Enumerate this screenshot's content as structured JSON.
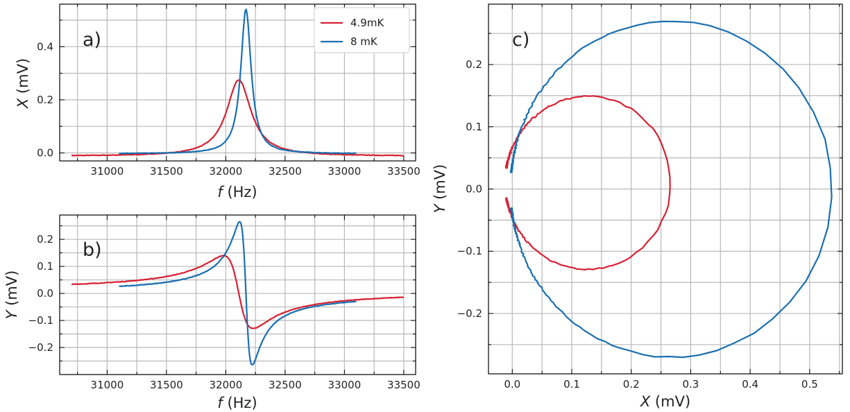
{
  "colors": {
    "series_4_9mK": "#d62033",
    "series_8mK": "#1a6faf"
  },
  "chart_data": [
    {
      "id": "a",
      "type": "line",
      "panel_label": "a)",
      "xlabel_var": "f",
      "xlabel_unit": " (Hz)",
      "ylabel_var": "X",
      "ylabel_unit": " (mV)",
      "xlim": [
        30600,
        33600
      ],
      "ylim": [
        -0.03,
        0.56
      ],
      "xticks": [
        31000,
        31500,
        32000,
        32500,
        33000,
        33500
      ],
      "yticks": [
        0.0,
        0.2,
        0.4
      ],
      "ytick_labels": [
        "0.0",
        "0.2",
        "0.4"
      ],
      "legend": {
        "position": "top-right",
        "entries": [
          "4.9mK",
          "8 mK"
        ]
      },
      "series": [
        {
          "name": "4.9mK",
          "model": "lorentz_x",
          "f0": 32110,
          "gamma": 125,
          "amp": 0.275,
          "offset": -0.012,
          "x_range": [
            30700,
            33500
          ]
        },
        {
          "name": "8 mK",
          "model": "lorentz_x",
          "f0": 32170,
          "gamma": 53,
          "amp": 0.54,
          "offset": -0.003,
          "x_range": [
            31100,
            33100
          ]
        }
      ]
    },
    {
      "id": "b",
      "type": "line",
      "panel_label": "b)",
      "xlabel_var": "f",
      "xlabel_unit": " (Hz)",
      "ylabel_var": "Y",
      "ylabel_unit": " (mV)",
      "xlim": [
        30600,
        33600
      ],
      "ylim": [
        -0.3,
        0.29
      ],
      "xticks": [
        31000,
        31500,
        32000,
        32500,
        33000,
        33500
      ],
      "yticks": [
        -0.2,
        -0.1,
        0.0,
        0.1,
        0.2
      ],
      "ytick_labels": [
        "−0.2",
        "−0.1",
        "0.0",
        "0.1",
        "0.2"
      ],
      "series": [
        {
          "name": "4.9mK",
          "model": "lorentz_y",
          "f0": 32110,
          "gamma": 125,
          "amp": 0.275,
          "offset": 0.01,
          "x_range": [
            30700,
            33500
          ]
        },
        {
          "name": "8 mK",
          "model": "lorentz_y",
          "f0": 32170,
          "gamma": 53,
          "amp": 0.54,
          "offset": 0.0,
          "x_range": [
            31100,
            33100
          ]
        }
      ]
    },
    {
      "id": "c",
      "type": "line",
      "panel_label": "c)",
      "xlabel_var": "X",
      "xlabel_unit": " (mV)",
      "ylabel_var": "Y",
      "ylabel_unit": " (mV)",
      "xlim": [
        -0.04,
        0.555
      ],
      "ylim": [
        -0.297,
        0.297
      ],
      "xticks": [
        0.0,
        0.1,
        0.2,
        0.3,
        0.4,
        0.5
      ],
      "xtick_labels": [
        "0.0",
        "0.1",
        "0.2",
        "0.3",
        "0.4",
        "0.5"
      ],
      "yticks": [
        -0.2,
        -0.1,
        0.0,
        0.1,
        0.2
      ],
      "ytick_labels": [
        "−0.2",
        "−0.1",
        "0.0",
        "0.1",
        "0.2"
      ],
      "series": [
        {
          "name": "4.9mK",
          "model": "circle",
          "cx": 0.127,
          "cy": 0.01,
          "r": 0.139,
          "x_range": [
            30700,
            33500
          ],
          "f0": 32110,
          "gamma": 125
        },
        {
          "name": "8 mK",
          "model": "circle",
          "cx": 0.267,
          "cy": 0.0,
          "r": 0.27,
          "x_range": [
            31100,
            33100
          ],
          "f0": 32170,
          "gamma": 53
        }
      ]
    }
  ]
}
